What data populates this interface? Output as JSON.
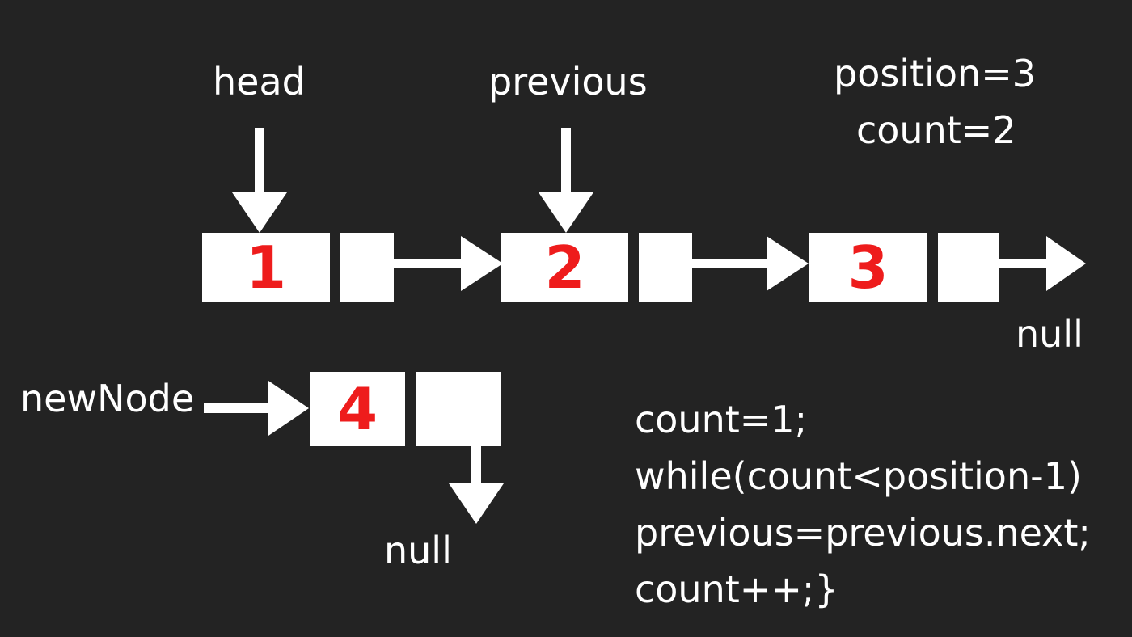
{
  "pointers": {
    "head": "head",
    "previous": "previous",
    "new_node": "newNode"
  },
  "state": {
    "position": "position=3",
    "count": "count=2"
  },
  "nodes": [
    {
      "value": "1"
    },
    {
      "value": "2"
    },
    {
      "value": "3"
    }
  ],
  "new_node": {
    "value": "4"
  },
  "null_labels": {
    "list_end": "null",
    "new_node_next": "null"
  },
  "code": [
    "count=1;",
    "while(count<position-1)",
    "previous=previous.next;",
    "count++;}"
  ],
  "colors": {
    "background": "#232323",
    "box": "#ffffff",
    "arrow": "#ffffff",
    "value_text": "#ee1c1c",
    "label_text": "#ffffff"
  }
}
